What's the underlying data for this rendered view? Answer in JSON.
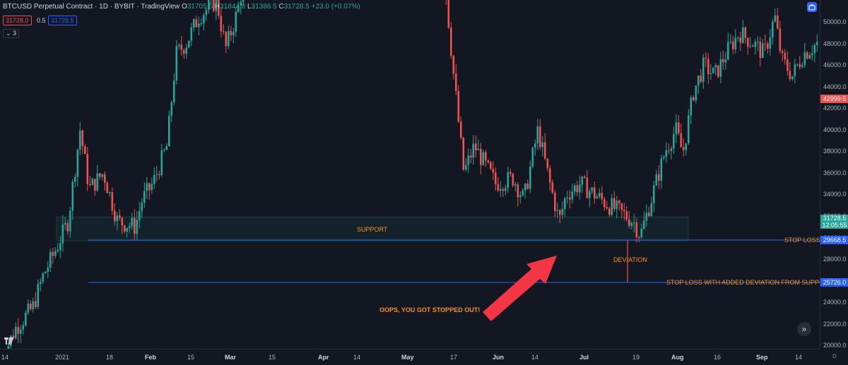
{
  "legend": {
    "symbol": "BTCUSD Perpetual Contract · 1D · BYBIT · TradingView",
    "open_label": "O",
    "open": "31705.5",
    "high_label": "H",
    "high": "31844.0",
    "low_label": "L",
    "low": "31386.5",
    "close_label": "C",
    "close": "31728.5",
    "change": "+23.0 (+0.07%)"
  },
  "order_boxes": {
    "sell": "31728.0",
    "spread": "0.5",
    "buy": "31728.5"
  },
  "indicators_count": "3",
  "price_axis": {
    "ticks": [
      "50000.0",
      "48000.0",
      "46000.0",
      "44000.0",
      "42000.0",
      "40000.0",
      "38000.0",
      "36000.0",
      "34000.0",
      "32000.0",
      "30000.0",
      "28000.0",
      "26000.0",
      "24000.0",
      "22000.0",
      "20000.0"
    ],
    "current_price": "31728.5",
    "countdown": "12:05:55",
    "red_label": "42999.5",
    "stop_loss_label": "29668.5",
    "deviation_stop_label": "25726.0"
  },
  "time_axis": {
    "ticks": [
      "14",
      "2021",
      "18",
      "Feb",
      "15",
      "Mar",
      "15",
      "Apr",
      "14",
      "May",
      "17",
      "Jun",
      "14",
      "Jul",
      "19",
      "Aug",
      "16",
      "Sep",
      "14"
    ]
  },
  "annotations": {
    "support": "SUPPORT",
    "stop_loss": "STOP LOSS",
    "deviation": "DEVIATION",
    "stop_loss_deviation": "STOP LOSS WITH ADDED DEVIATION FROM SUPPORT",
    "stopped_out": "OOPS, YOU GOT STOPPED OUT!"
  },
  "colors": {
    "up": "#26a69a",
    "down": "#ef5350",
    "background": "#131722",
    "annotation": "#f7931a",
    "line": "#2962ff"
  },
  "icons": [
    "tradingview-logo-icon",
    "camera-icon",
    "settings-icon",
    "scroll-right-icon"
  ]
}
